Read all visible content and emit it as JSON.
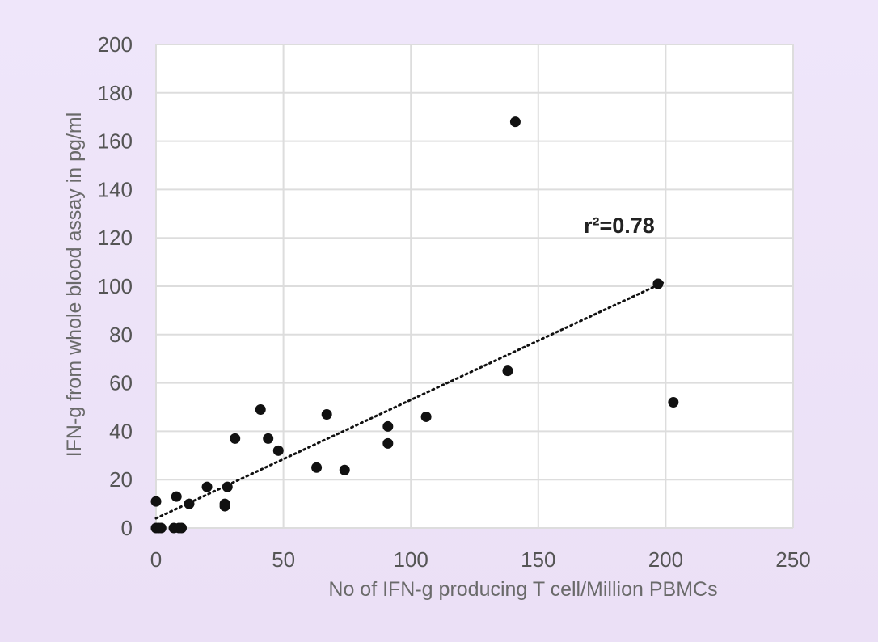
{
  "chart_data": {
    "type": "scatter",
    "title": "",
    "xlabel": "No of IFN-g producing T cell/Million PBMCs",
    "ylabel": "IFN-g from whole blood assay in pg/ml",
    "xlim": [
      0,
      250
    ],
    "ylim": [
      0,
      200
    ],
    "xticks": [
      "0",
      "50",
      "100",
      "150",
      "200",
      "250"
    ],
    "yticks": [
      "0",
      "20",
      "40",
      "60",
      "80",
      "100",
      "120",
      "140",
      "160",
      "180",
      "200"
    ],
    "grid": true,
    "annotation": "r²=0.78",
    "trendline": {
      "x": [
        0,
        200
      ],
      "y": [
        4,
        102
      ],
      "style": "dotted"
    },
    "colors": {
      "points": "#111111",
      "grid": "#dddddd",
      "plot_bg": "#ffffff",
      "page_bg": "#ece2f7"
    },
    "points": [
      {
        "x": 0,
        "y": 11
      },
      {
        "x": 0,
        "y": 0
      },
      {
        "x": 1,
        "y": 0
      },
      {
        "x": 2,
        "y": 0
      },
      {
        "x": 7,
        "y": 0
      },
      {
        "x": 9,
        "y": 0
      },
      {
        "x": 10,
        "y": 0
      },
      {
        "x": 8,
        "y": 13
      },
      {
        "x": 13,
        "y": 10
      },
      {
        "x": 20,
        "y": 17
      },
      {
        "x": 27,
        "y": 9
      },
      {
        "x": 27,
        "y": 10
      },
      {
        "x": 28,
        "y": 17
      },
      {
        "x": 31,
        "y": 37
      },
      {
        "x": 41,
        "y": 49
      },
      {
        "x": 44,
        "y": 37
      },
      {
        "x": 48,
        "y": 32
      },
      {
        "x": 63,
        "y": 25
      },
      {
        "x": 67,
        "y": 47
      },
      {
        "x": 74,
        "y": 24
      },
      {
        "x": 91,
        "y": 42
      },
      {
        "x": 91,
        "y": 35
      },
      {
        "x": 106,
        "y": 46
      },
      {
        "x": 138,
        "y": 65
      },
      {
        "x": 141,
        "y": 168
      },
      {
        "x": 197,
        "y": 101
      },
      {
        "x": 203,
        "y": 52
      }
    ]
  }
}
